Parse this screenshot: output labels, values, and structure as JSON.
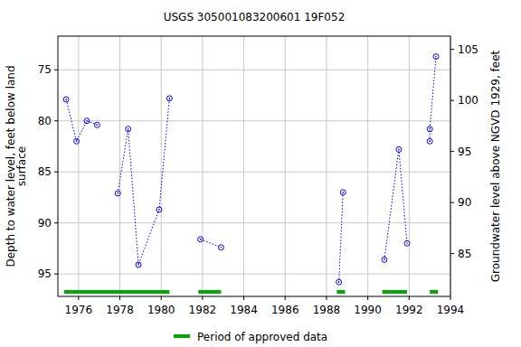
{
  "chart_data": {
    "type": "line",
    "title": "USGS 305001083200601 19F052",
    "y_label": "Depth to water level, feet below land\nsurface",
    "y2_label": "Groundwater level above NGVD 1929, feet",
    "xlim": [
      1975,
      1994
    ],
    "xticks": [
      1976,
      1978,
      1980,
      1982,
      1984,
      1986,
      1988,
      1990,
      1992,
      1994
    ],
    "ylim": [
      97.2,
      71.7
    ],
    "yticks": [
      75,
      80,
      85,
      90,
      95
    ],
    "y2lim": [
      80.8,
      106.3
    ],
    "y2ticks": [
      85,
      90,
      95,
      100,
      105
    ],
    "grid": true,
    "series": [
      {
        "color": "#0000ff",
        "marker": "circle",
        "line_style": "dotted",
        "x": [
          1975.4,
          1975.9,
          1976.4,
          1976.9,
          null,
          1977.9,
          1978.4,
          1978.9,
          1979.9,
          1980.4,
          null,
          1981.9,
          1982.9,
          null,
          1988.6,
          1988.8,
          null,
          1990.8,
          1991.5,
          1991.9,
          null,
          1993.0,
          1993.0,
          1993.3
        ],
        "values": [
          77.9,
          82.0,
          80.0,
          80.4,
          null,
          87.1,
          80.8,
          94.1,
          88.7,
          77.8,
          null,
          91.6,
          92.4,
          null,
          95.8,
          87.0,
          null,
          93.6,
          82.8,
          92.0,
          null,
          82.0,
          80.8,
          73.7
        ]
      }
    ],
    "approved_periods": {
      "name": "Period of approved data",
      "color": "#00aa00",
      "x": [
        [
          1975.3,
          1976.9
        ],
        [
          1976.8,
          1980.4
        ],
        [
          1981.8,
          1982.9
        ],
        [
          1988.5,
          1988.9
        ],
        [
          1990.7,
          1991.9
        ],
        [
          1993.0,
          1993.4
        ]
      ]
    }
  }
}
